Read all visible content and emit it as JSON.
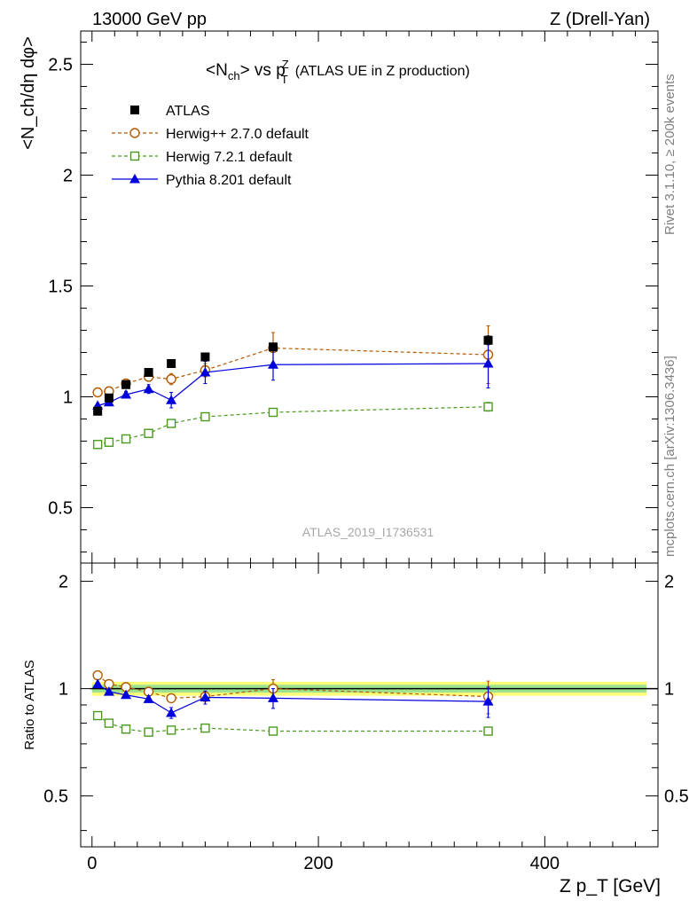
{
  "header": {
    "left": "13000 GeV pp",
    "right": "Z (Drell-Yan)"
  },
  "side_labels": {
    "rivet": "Rivet 3.1.10, ≥ 200k events",
    "mcplots": "mcplots.cern.ch [arXiv:1306.3436]"
  },
  "chart_data": {
    "type": "scatter",
    "title_main": "<N",
    "title_sub": "ch",
    "title_mid": "> vs p",
    "title_sup": "Z",
    "title_sub2": "T",
    "title_tail": "(ATLAS UE in Z production)",
    "watermark": "ATLAS_2019_I1736531",
    "ylabel": "<N_ch/dη dφ>",
    "ratio_ylabel": "Ratio to ATLAS",
    "xlabel": "Z p_T [GeV]",
    "xlim": [
      -10,
      500
    ],
    "ylim": [
      0.25,
      2.65
    ],
    "ratio_ylim": [
      0.36,
      2.25
    ],
    "x_ticks": [
      0,
      200,
      400
    ],
    "y_ticks": [
      0.5,
      1,
      1.5,
      2,
      2.5
    ],
    "ratio_ticks": [
      0.5,
      1,
      2
    ],
    "x": [
      5,
      15,
      30,
      50,
      70,
      100,
      160,
      350
    ],
    "series": [
      {
        "name": "ATLAS",
        "color": "#000000",
        "marker": "square-filled",
        "line": "none",
        "values": [
          0.935,
          0.995,
          1.055,
          1.11,
          1.15,
          1.18,
          1.225,
          1.255
        ],
        "errors": [
          0.01,
          0.01,
          0.01,
          0.01,
          0.01,
          0.01,
          0.01,
          0.02
        ],
        "ratio": [
          1,
          1,
          1,
          1,
          1,
          1,
          1,
          1
        ]
      },
      {
        "name": "Herwig++ 2.7.0 default",
        "color": "#b35900",
        "marker": "circle-open",
        "line": "dashed",
        "values": [
          1.02,
          1.025,
          1.06,
          1.09,
          1.08,
          1.12,
          1.22,
          1.19
        ],
        "errors": [
          0.01,
          0.01,
          0.01,
          0.015,
          0.025,
          0.03,
          0.07,
          0.13
        ],
        "ratio": [
          1.09,
          1.03,
          1.01,
          0.98,
          0.94,
          0.95,
          1.0,
          0.95
        ],
        "ratio_errors": [
          0.01,
          0.01,
          0.01,
          0.015,
          0.02,
          0.03,
          0.06,
          0.1
        ]
      },
      {
        "name": "Herwig 7.2.1 default",
        "color": "#4a9a1e",
        "marker": "square-open",
        "line": "dashed",
        "values": [
          0.785,
          0.795,
          0.81,
          0.835,
          0.88,
          0.91,
          0.93,
          0.955
        ],
        "errors": [
          0.005,
          0.005,
          0.005,
          0.005,
          0.005,
          0.005,
          0.01,
          0.02
        ],
        "ratio": [
          0.84,
          0.8,
          0.77,
          0.755,
          0.765,
          0.775,
          0.76,
          0.76
        ],
        "ratio_errors": [
          0.005,
          0.005,
          0.005,
          0.005,
          0.005,
          0.005,
          0.01,
          0.015
        ]
      },
      {
        "name": "Pythia 8.201 default",
        "color": "#0000dd",
        "marker": "triangle-filled",
        "line": "solid",
        "values": [
          0.96,
          0.975,
          1.01,
          1.035,
          0.985,
          1.11,
          1.145,
          1.15
        ],
        "errors": [
          0.01,
          0.01,
          0.015,
          0.02,
          0.035,
          0.05,
          0.07,
          0.11
        ],
        "ratio": [
          1.03,
          0.98,
          0.96,
          0.935,
          0.855,
          0.945,
          0.94,
          0.92
        ],
        "ratio_errors": [
          0.01,
          0.01,
          0.015,
          0.02,
          0.03,
          0.04,
          0.06,
          0.09
        ]
      }
    ],
    "legend_placement": "top-left",
    "grid": false
  }
}
